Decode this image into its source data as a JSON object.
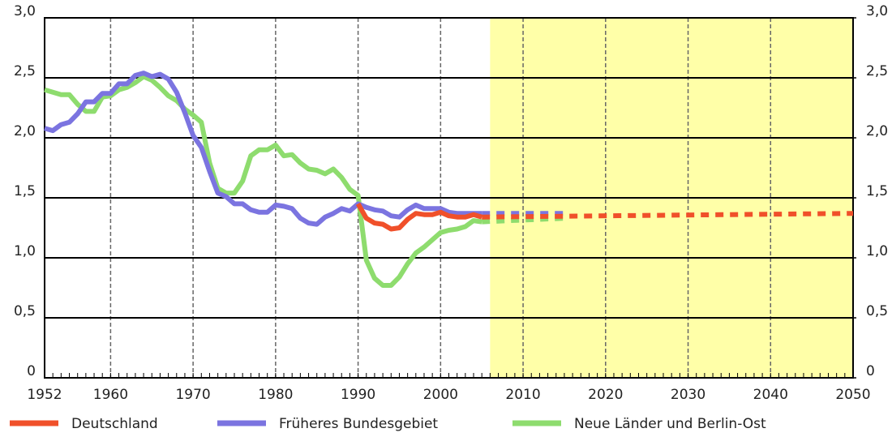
{
  "chart_data": {
    "type": "line",
    "xlim": [
      1952,
      2050
    ],
    "xticks": [
      1952,
      1960,
      1970,
      1980,
      1990,
      2000,
      2010,
      2020,
      2030,
      2040,
      2050
    ],
    "ylim": [
      0,
      3
    ],
    "yticks": [
      0,
      {
        "value": 0.5,
        "label": "0,5"
      },
      {
        "value": 1,
        "label": "1,0"
      },
      {
        "value": 1.5,
        "label": "1,5"
      },
      {
        "value": 2,
        "label": "2,0"
      },
      {
        "value": 2.5,
        "label": "2,5"
      },
      {
        "value": 3,
        "label": "3,0"
      }
    ],
    "y2lim": [
      0,
      3
    ],
    "y2ticks": [
      0,
      {
        "value": 0.5,
        "label": "0,5"
      },
      {
        "value": 1,
        "label": "1,0"
      },
      {
        "value": 1.5,
        "label": "1,5"
      },
      {
        "value": 2,
        "label": "2,0"
      },
      {
        "value": 2.5,
        "label": "2,5"
      },
      {
        "value": 3,
        "label": "3,0"
      }
    ],
    "shade": {
      "from": 2006,
      "to": 2050,
      "color": "#ffffa8"
    },
    "grid": true,
    "series": [
      {
        "name": "Deutschland",
        "color": "#f0502a",
        "dashed_from": 2005,
        "x": [
          1990,
          1991,
          1992,
          1993,
          1994,
          1995,
          1996,
          1997,
          1998,
          1999,
          2000,
          2001,
          2002,
          2003,
          2004,
          2005,
          2050
        ],
        "values": [
          1.45,
          1.33,
          1.29,
          1.28,
          1.24,
          1.25,
          1.32,
          1.37,
          1.36,
          1.36,
          1.38,
          1.35,
          1.34,
          1.34,
          1.36,
          1.34,
          1.37
        ]
      },
      {
        "name": "Früheres Bundesgebiet",
        "color": "#7b74e0",
        "dashed_from": 2005,
        "x": [
          1952,
          1953,
          1954,
          1955,
          1956,
          1957,
          1958,
          1959,
          1960,
          1961,
          1962,
          1963,
          1964,
          1965,
          1966,
          1967,
          1968,
          1969,
          1970,
          1971,
          1972,
          1973,
          1974,
          1975,
          1976,
          1977,
          1978,
          1979,
          1980,
          1981,
          1982,
          1983,
          1984,
          1985,
          1986,
          1987,
          1988,
          1989,
          1990,
          1991,
          1992,
          1993,
          1994,
          1995,
          1996,
          1997,
          1998,
          1999,
          2000,
          2001,
          2002,
          2003,
          2004,
          2005,
          2015
        ],
        "values": [
          2.08,
          2.06,
          2.11,
          2.13,
          2.2,
          2.3,
          2.3,
          2.37,
          2.37,
          2.45,
          2.45,
          2.52,
          2.54,
          2.51,
          2.53,
          2.49,
          2.38,
          2.21,
          2.02,
          1.92,
          1.72,
          1.54,
          1.51,
          1.45,
          1.45,
          1.4,
          1.38,
          1.38,
          1.44,
          1.43,
          1.41,
          1.33,
          1.29,
          1.28,
          1.34,
          1.37,
          1.41,
          1.39,
          1.45,
          1.42,
          1.4,
          1.39,
          1.35,
          1.34,
          1.4,
          1.44,
          1.41,
          1.41,
          1.41,
          1.38,
          1.37,
          1.37,
          1.37,
          1.37,
          1.37
        ]
      },
      {
        "name": "Neue Länder und Berlin-Ost",
        "color": "#8edc6e",
        "dashed_from": 2005,
        "x": [
          1952,
          1953,
          1954,
          1955,
          1956,
          1957,
          1958,
          1959,
          1960,
          1961,
          1962,
          1963,
          1964,
          1965,
          1966,
          1967,
          1968,
          1969,
          1970,
          1971,
          1972,
          1973,
          1974,
          1975,
          1976,
          1977,
          1978,
          1979,
          1980,
          1981,
          1982,
          1983,
          1984,
          1985,
          1986,
          1987,
          1988,
          1989,
          1990,
          1991,
          1992,
          1993,
          1994,
          1995,
          1996,
          1997,
          1998,
          1999,
          2000,
          2001,
          2002,
          2003,
          2004,
          2005,
          2015
        ],
        "values": [
          2.4,
          2.38,
          2.36,
          2.36,
          2.28,
          2.22,
          2.22,
          2.34,
          2.35,
          2.4,
          2.42,
          2.46,
          2.51,
          2.48,
          2.42,
          2.35,
          2.31,
          2.24,
          2.19,
          2.13,
          1.79,
          1.58,
          1.54,
          1.54,
          1.64,
          1.85,
          1.9,
          1.9,
          1.94,
          1.85,
          1.86,
          1.79,
          1.74,
          1.73,
          1.7,
          1.74,
          1.67,
          1.57,
          1.52,
          0.98,
          0.83,
          0.77,
          0.77,
          0.84,
          0.95,
          1.04,
          1.09,
          1.15,
          1.21,
          1.23,
          1.24,
          1.26,
          1.31,
          1.3,
          1.33
        ]
      }
    ]
  }
}
